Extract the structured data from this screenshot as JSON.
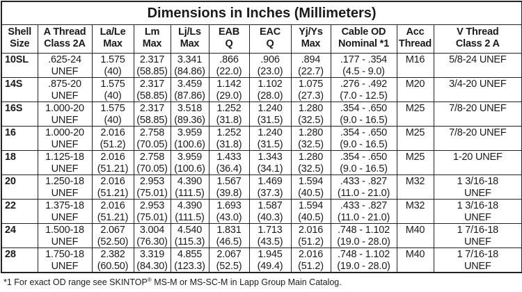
{
  "table": {
    "title": "Dimensions in Inches (Millimeters)",
    "headers": [
      [
        "Shell",
        "Size"
      ],
      [
        "A Thread",
        "Class 2A"
      ],
      [
        "La/Le",
        "Max"
      ],
      [
        "Lm",
        "Max"
      ],
      [
        "Lj/Ls",
        "Max"
      ],
      [
        "EAB",
        "Q"
      ],
      [
        "EAC",
        "Q"
      ],
      [
        "Yj/Ys",
        "Max"
      ],
      [
        "Cable OD",
        "Nominal *1"
      ],
      [
        "Acc",
        "Thread"
      ],
      [
        "V Thread",
        "Class 2 A"
      ]
    ],
    "rows": [
      [
        [
          "10SL"
        ],
        [
          ".625-24",
          "UNEF"
        ],
        [
          "1.575",
          "(40)"
        ],
        [
          "2.317",
          "(58.85)"
        ],
        [
          "3.341",
          "(84.86)"
        ],
        [
          ".866",
          "(22.0)"
        ],
        [
          ".906",
          "(23.0)"
        ],
        [
          ".894",
          "(22.7)"
        ],
        [
          ".177 - .354",
          "(4.5 - 9.0)"
        ],
        [
          "M16"
        ],
        [
          "5/8-24 UNEF"
        ]
      ],
      [
        [
          "14S"
        ],
        [
          ".875-20",
          "UNEF"
        ],
        [
          "1.575",
          "(40)"
        ],
        [
          "2.317",
          "(58.85)"
        ],
        [
          "3.459",
          "(87.86)"
        ],
        [
          "1.142",
          "(29.0)"
        ],
        [
          "1.102",
          "(28.0)"
        ],
        [
          "1.075",
          "(27.3)"
        ],
        [
          ".276 - .492",
          "(7.0 - 12.5)"
        ],
        [
          "M20"
        ],
        [
          "3/4-20 UNEF"
        ]
      ],
      [
        [
          "16S"
        ],
        [
          "1.000-20",
          "UNEF"
        ],
        [
          "1.575",
          "(40)"
        ],
        [
          "2.317",
          "(58.85)"
        ],
        [
          "3.518",
          "(89.36)"
        ],
        [
          "1.252",
          "(31.8)"
        ],
        [
          "1.240",
          "(31.5)"
        ],
        [
          "1.280",
          "(32.5)"
        ],
        [
          ".354 - .650",
          "(9.0 - 16.5)"
        ],
        [
          "M25"
        ],
        [
          "7/8-20 UNEF"
        ]
      ],
      [
        [
          "16"
        ],
        [
          "1.000-20",
          "UNEF"
        ],
        [
          "2.016",
          "(51.2)"
        ],
        [
          "2.758",
          "(70.05)"
        ],
        [
          "3.959",
          "(100.6)"
        ],
        [
          "1.252",
          "(31.8)"
        ],
        [
          "1.240",
          "(31.5)"
        ],
        [
          "1.280",
          "(32.5)"
        ],
        [
          ".354 - .650",
          "(9.0 - 16.5)"
        ],
        [
          "M25"
        ],
        [
          "7/8-20 UNEF"
        ]
      ],
      [
        [
          "18"
        ],
        [
          "1.125-18",
          "UNEF"
        ],
        [
          "2.016",
          "(51.21)"
        ],
        [
          "2.758",
          "(70.05)"
        ],
        [
          "3.959",
          "(100.6)"
        ],
        [
          "1.433",
          "(36.4)"
        ],
        [
          "1.343",
          "(34.1)"
        ],
        [
          "1.280",
          "(32.5)"
        ],
        [
          ".354 - .650",
          "(9.0 - 16.5)"
        ],
        [
          "M25"
        ],
        [
          "1-20 UNEF"
        ]
      ],
      [
        [
          "20"
        ],
        [
          "1.250-18",
          "UNEF"
        ],
        [
          "2.016",
          "(51.21)"
        ],
        [
          "2.953",
          "(75.01)"
        ],
        [
          "4.390",
          "(111.5)"
        ],
        [
          "1.567",
          "(39.8)"
        ],
        [
          "1.469",
          "(37.3)"
        ],
        [
          "1.594",
          "(40.5)"
        ],
        [
          ".433 - .827",
          "(11.0 - 21.0)"
        ],
        [
          "M32"
        ],
        [
          "1 3/16-18",
          "UNEF"
        ]
      ],
      [
        [
          "22"
        ],
        [
          "1.375-18",
          "UNEF"
        ],
        [
          "2.016",
          "(51.21)"
        ],
        [
          "2.953",
          "(75.01)"
        ],
        [
          "4.390",
          "(111.5)"
        ],
        [
          "1.693",
          "(43.0)"
        ],
        [
          "1.587",
          "(40.3)"
        ],
        [
          "1.594",
          "(40.5)"
        ],
        [
          ".433 - .827",
          "(11.0 - 21.0)"
        ],
        [
          "M32"
        ],
        [
          "1 3/16-18",
          "UNEF"
        ]
      ],
      [
        [
          "24"
        ],
        [
          "1.500-18",
          "UNEF"
        ],
        [
          "2.067",
          "(52.50)"
        ],
        [
          "3.004",
          "(76.30)"
        ],
        [
          "4.540",
          "(115.3)"
        ],
        [
          "1.831",
          "(46.5)"
        ],
        [
          "1.713",
          "(43.5)"
        ],
        [
          "2.016",
          "(51.2)"
        ],
        [
          ".748 - 1.102",
          "(19.0 - 28.0)"
        ],
        [
          "M40"
        ],
        [
          "1 7/16-18",
          "UNEF"
        ]
      ],
      [
        [
          "28"
        ],
        [
          "1.750-18",
          "UNEF"
        ],
        [
          "2.382",
          "(60.50)"
        ],
        [
          "3.319",
          "(84.30)"
        ],
        [
          "4.855",
          "(123.3)"
        ],
        [
          "2.067",
          "(52.5)"
        ],
        [
          "1.945",
          "(49.4)"
        ],
        [
          "2.016",
          "(51.2)"
        ],
        [
          ".748 - 1.102",
          "(19.0 - 28.0)"
        ],
        [
          "M40"
        ],
        [
          "1 7/16-18",
          "UNEF"
        ]
      ]
    ]
  },
  "footnote": [
    "*1 For exact OD range see SKINTOP",
    "®",
    "  MS-M or MS-SC-M in Lapp Group Main Catalog."
  ]
}
